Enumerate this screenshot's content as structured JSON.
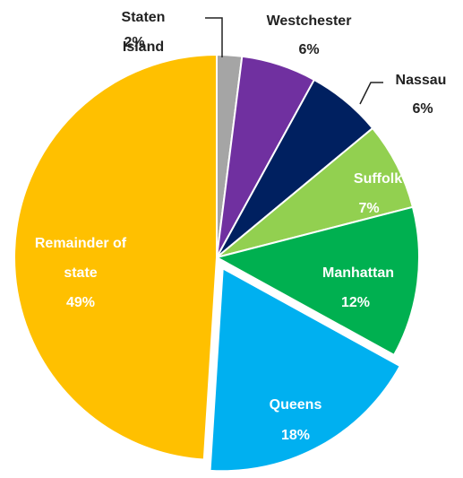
{
  "chart_data": {
    "type": "pie",
    "categories": [
      "Staten Island",
      "Westchester",
      "Nassau",
      "Suffolk",
      "Manhattan",
      "Queens",
      "Remainder of state"
    ],
    "values": [
      2,
      6,
      6,
      7,
      12,
      18,
      49
    ],
    "value_labels": [
      "2%",
      "6%",
      "6%",
      "7%",
      "12%",
      "18%",
      "49%"
    ],
    "colors": [
      "#a5a5a5",
      "#7030a0",
      "#002060",
      "#92d050",
      "#00b050",
      "#00b0f0",
      "#ffc000"
    ],
    "exploded": "Queens"
  }
}
